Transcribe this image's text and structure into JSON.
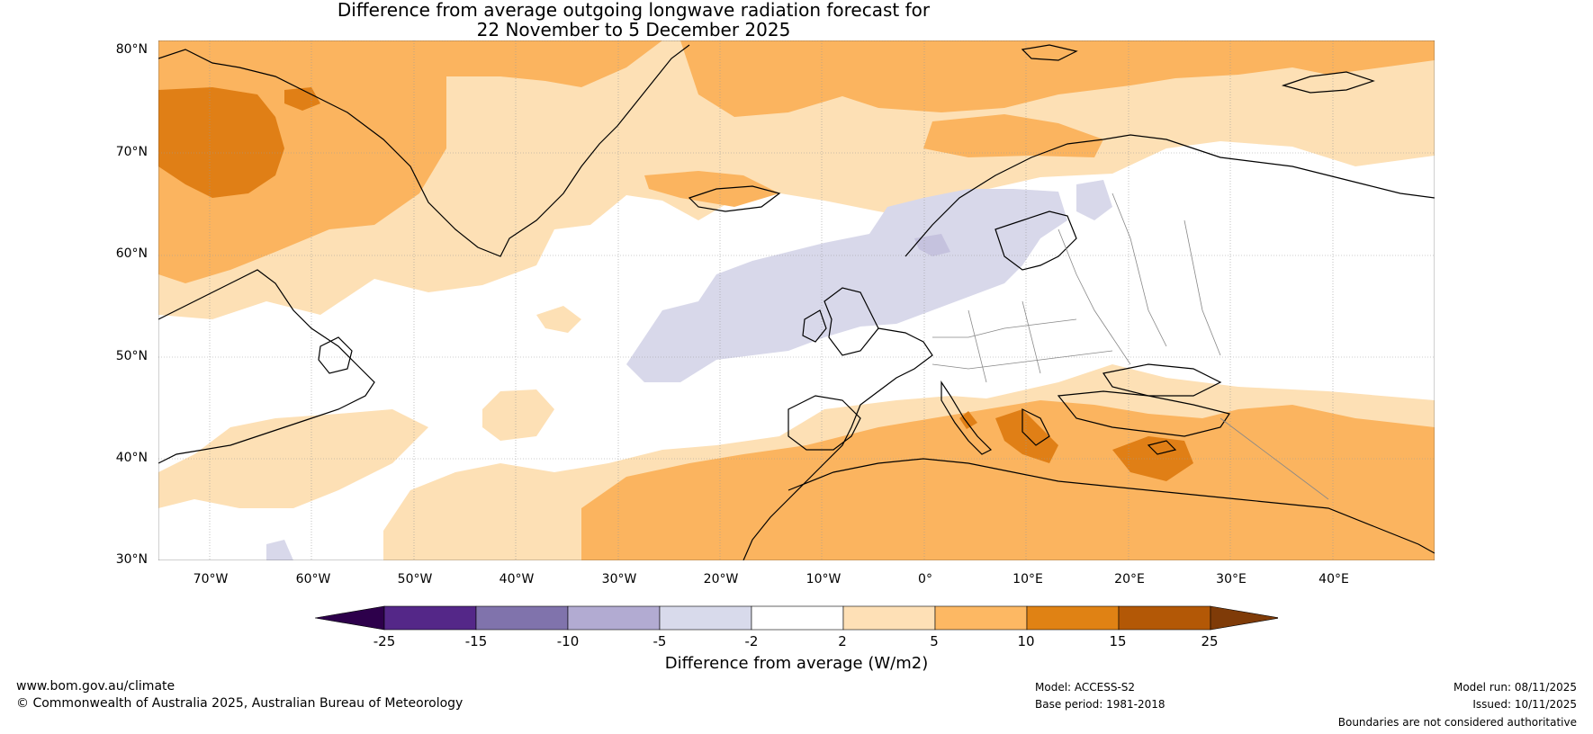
{
  "title": {
    "line1": "Difference from average outgoing longwave radiation forecast for",
    "line2": "22 November to 5 December 2025"
  },
  "map": {
    "lat_labels": [
      "80°N",
      "70°N",
      "60°N",
      "50°N",
      "40°N",
      "30°N"
    ],
    "lon_labels": [
      "70°W",
      "60°W",
      "50°W",
      "40°W",
      "30°W",
      "20°W",
      "10°W",
      "0°",
      "10°E",
      "20°E",
      "30°E",
      "40°E"
    ],
    "colors": {
      "ocean_white": "#ffffff",
      "light_orange": "#fde0b5",
      "orange": "#fbb45f",
      "dark_orange": "#e07f16",
      "darker_orange": "#b35806",
      "light_purple": "#d8d8ea"
    }
  },
  "colorbar": {
    "title": "Difference from average (W/m2)",
    "ticks": [
      "-25",
      "-15",
      "-10",
      "-5",
      "-2",
      "2",
      "5",
      "10",
      "15",
      "25"
    ],
    "bins": [
      {
        "range": "<-25",
        "color": "#2d004b"
      },
      {
        "range": "-25 to -15",
        "color": "#542788"
      },
      {
        "range": "-15 to -10",
        "color": "#8073ac"
      },
      {
        "range": "-10 to -5",
        "color": "#b2abd2"
      },
      {
        "range": "-5 to -2",
        "color": "#d8daeb"
      },
      {
        "range": "-2 to 2",
        "color": "#ffffff"
      },
      {
        "range": "2 to 5",
        "color": "#fee0b6"
      },
      {
        "range": "5 to 10",
        "color": "#fdb863"
      },
      {
        "range": "10 to 15",
        "color": "#e08214"
      },
      {
        "range": "15 to 25",
        "color": "#b35806"
      },
      {
        "range": ">25",
        "color": "#7f3b08"
      }
    ]
  },
  "footer": {
    "website": "www.bom.gov.au/climate",
    "copyright": "© Commonwealth of Australia 2025, Australian Bureau of Meteorology",
    "model": "Model: ACCESS-S2",
    "base_period": "Base period: 1981-2018",
    "model_run": "Model run: 08/11/2025",
    "issued": "Issued: 10/11/2025",
    "disclaimer": "Boundaries are not considered authoritative"
  }
}
